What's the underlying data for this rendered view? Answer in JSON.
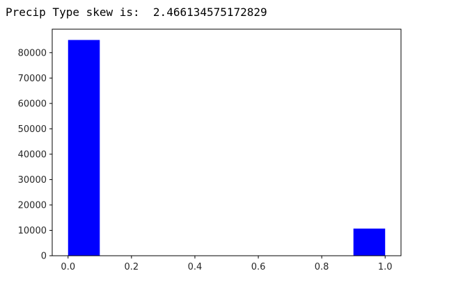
{
  "output": {
    "text": "Precip Type skew is:  2.466134575172829"
  },
  "chart_data": {
    "type": "bar",
    "title": "",
    "xlabel": "",
    "ylabel": "",
    "bins": [
      {
        "x0": 0.0,
        "x1": 0.1,
        "value": 85000
      },
      {
        "x0": 0.1,
        "x1": 0.2,
        "value": 0
      },
      {
        "x0": 0.2,
        "x1": 0.3,
        "value": 0
      },
      {
        "x0": 0.3,
        "x1": 0.4,
        "value": 0
      },
      {
        "x0": 0.4,
        "x1": 0.5,
        "value": 0
      },
      {
        "x0": 0.5,
        "x1": 0.6,
        "value": 0
      },
      {
        "x0": 0.6,
        "x1": 0.7,
        "value": 0
      },
      {
        "x0": 0.7,
        "x1": 0.8,
        "value": 0
      },
      {
        "x0": 0.8,
        "x1": 0.9,
        "value": 0
      },
      {
        "x0": 0.9,
        "x1": 1.0,
        "value": 10700
      }
    ],
    "xlim": [
      -0.05,
      1.05
    ],
    "ylim": [
      0,
      89250
    ],
    "xticks": [
      0.0,
      0.2,
      0.4,
      0.6,
      0.8,
      1.0
    ],
    "xtick_labels": [
      "0.0",
      "0.2",
      "0.4",
      "0.6",
      "0.8",
      "1.0"
    ],
    "yticks": [
      0,
      10000,
      20000,
      30000,
      40000,
      50000,
      60000,
      70000,
      80000
    ],
    "ytick_labels": [
      "0",
      "10000",
      "20000",
      "30000",
      "40000",
      "50000",
      "60000",
      "70000",
      "80000"
    ],
    "bar_color": "#0000ff",
    "grid": false
  }
}
